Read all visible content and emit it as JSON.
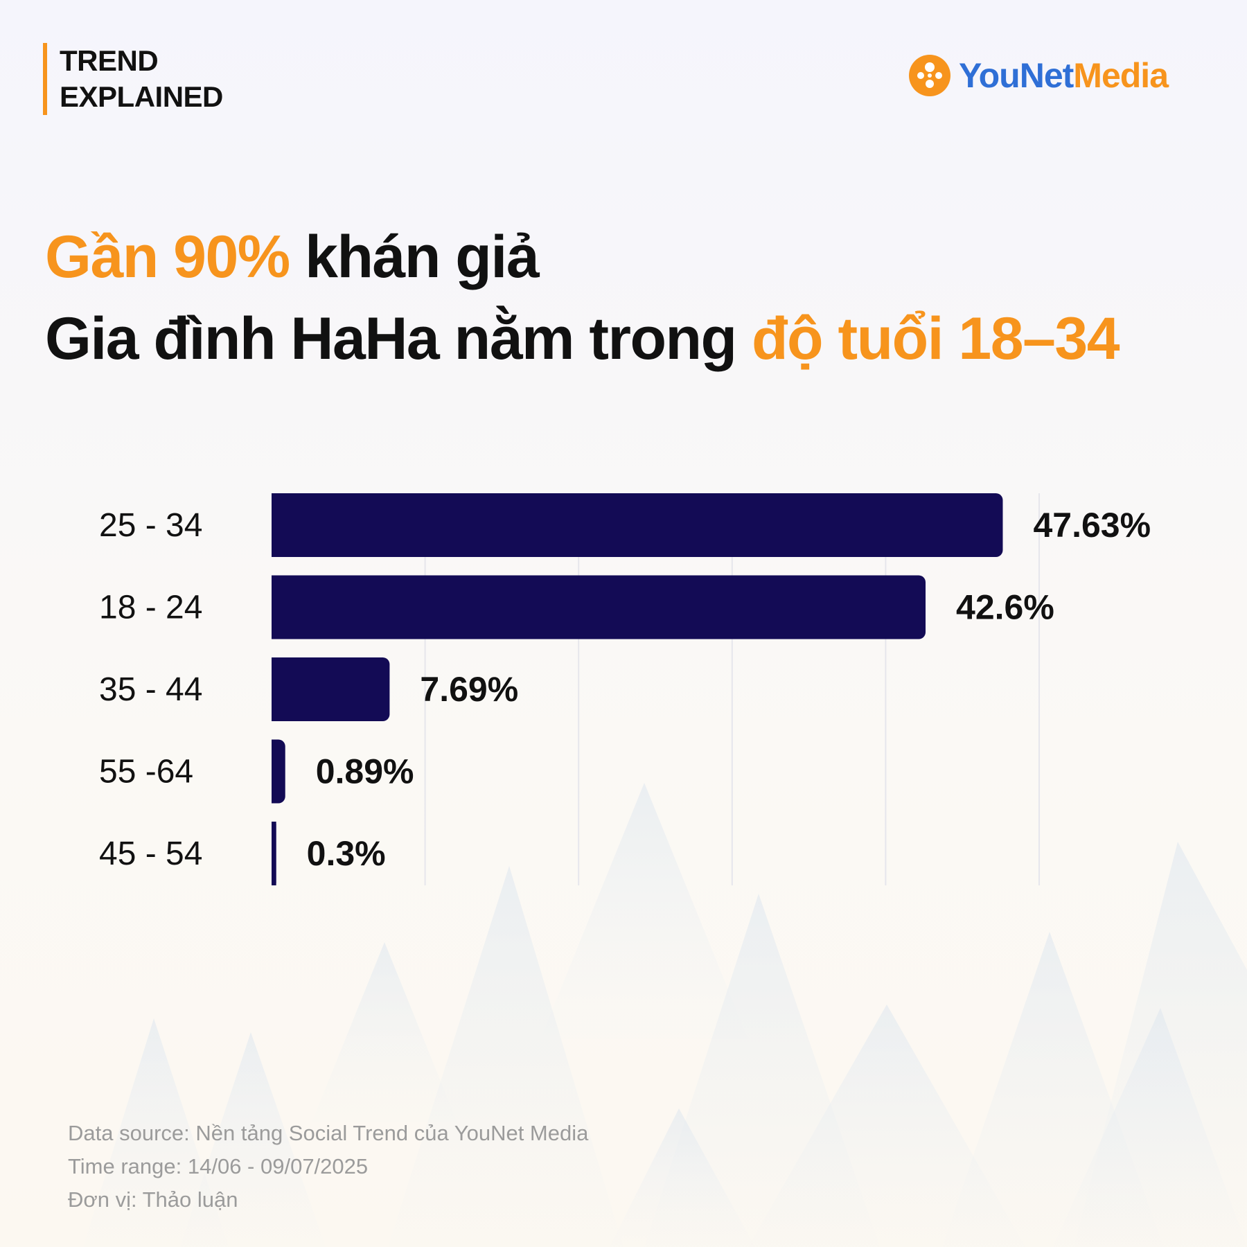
{
  "header": {
    "tag_line1": "TREND",
    "tag_line2": "EXPLAINED",
    "logo_text_a": "YouNet",
    "logo_text_b": "Media",
    "logo_icon": "younet-media-logo-icon"
  },
  "headline": {
    "line1_accent": "Gần 90%",
    "line1_rest": " khán giả",
    "line2_rest": "Gia đình HaHa nằm trong ",
    "line2_accent": "độ tuổi 18–34"
  },
  "chart_data": {
    "type": "bar",
    "orientation": "horizontal",
    "categories": [
      "25 - 34",
      "18 - 24",
      "35 - 44",
      "55 -64",
      "45 - 54"
    ],
    "values": [
      47.63,
      42.6,
      7.69,
      0.89,
      0.3
    ],
    "value_labels": [
      "47.63%",
      "42.6%",
      "7.69%",
      "0.89%",
      "0.3%"
    ],
    "xlim": [
      0,
      50
    ],
    "grid": true,
    "bar_color": "#130b55"
  },
  "footer": {
    "source": "Data source: Nền tảng Social Trend của YouNet Media",
    "time_range": "Time range: 14/06 - 09/07/2025",
    "unit": "Đơn vị: Thảo luận"
  },
  "colors": {
    "accent": "#f7941d",
    "brand_blue": "#2f6fd6",
    "bar": "#130b55"
  }
}
